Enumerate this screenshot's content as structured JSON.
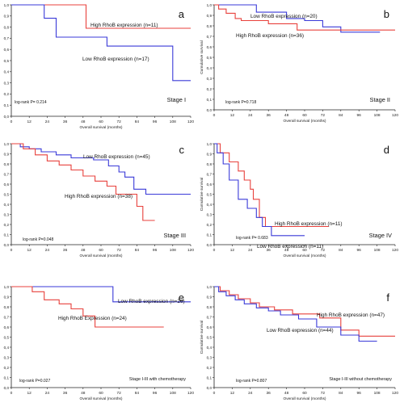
{
  "chart_data": [
    {
      "type": "line",
      "panel_letter": "a",
      "xlabel": "Overall survival (months)",
      "ylabel": "Cumulative survival",
      "xlim": [
        0,
        120
      ],
      "ylim": [
        0,
        1
      ],
      "x_ticks": [
        0,
        12,
        24,
        36,
        48,
        60,
        72,
        84,
        96,
        108,
        120
      ],
      "y_ticks": [
        "0,0",
        "0,1",
        "0,2",
        "0,3",
        "0,4",
        "0,5",
        "0,6",
        "0,7",
        "0,8",
        "0,9",
        "1,0"
      ],
      "annotation": "log-rank P= 0.214",
      "stage_label": "Stage I",
      "series": [
        {
          "name": "High RhoB expression (n=11)",
          "color": "#e8413c",
          "x": [
            0,
            50,
            50,
            120
          ],
          "y": [
            1.0,
            1.0,
            0.79,
            0.79
          ]
        },
        {
          "name": "Low RhoB expression (n=17)",
          "color": "#3a3ad8",
          "x": [
            0,
            22,
            22,
            30,
            30,
            36,
            36,
            64,
            64,
            108,
            108,
            120
          ],
          "y": [
            1.0,
            1.0,
            0.88,
            0.88,
            0.71,
            0.71,
            0.71,
            0.71,
            0.63,
            0.63,
            0.32,
            0.32
          ]
        }
      ]
    },
    {
      "type": "line",
      "panel_letter": "b",
      "xlabel": "Overall survival (months)",
      "ylabel": "Cumulative survival",
      "xlim": [
        0,
        120
      ],
      "ylim": [
        0,
        1
      ],
      "x_ticks": [
        0,
        12,
        24,
        36,
        48,
        60,
        72,
        84,
        96,
        108,
        120
      ],
      "y_ticks": [
        "0,0",
        "0,1",
        "0,2",
        "0,3",
        "0,4",
        "0,5",
        "0,6",
        "0,7",
        "0,8",
        "0,9",
        "1,0"
      ],
      "annotation": "log-rank P=0.718",
      "stage_label": "Stage II",
      "series": [
        {
          "name": "Low RhoB expression (n=20)",
          "color": "#3a3ad8",
          "x": [
            0,
            28,
            28,
            48,
            48,
            60,
            60,
            72,
            72,
            84,
            84,
            110
          ],
          "y": [
            1.0,
            1.0,
            0.93,
            0.93,
            0.87,
            0.87,
            0.85,
            0.85,
            0.79,
            0.79,
            0.74,
            0.74
          ]
        },
        {
          "name": "High RhoB expression (n=36)",
          "color": "#e8413c",
          "x": [
            0,
            3,
            3,
            8,
            8,
            14,
            14,
            18,
            18,
            36,
            36,
            55,
            55,
            120
          ],
          "y": [
            1.0,
            1.0,
            0.96,
            0.96,
            0.92,
            0.92,
            0.87,
            0.87,
            0.85,
            0.85,
            0.82,
            0.82,
            0.76,
            0.76
          ]
        }
      ]
    },
    {
      "type": "line",
      "panel_letter": "c",
      "xlabel": "Overall survival (months)",
      "ylabel": "Cumulative survival",
      "xlim": [
        0,
        120
      ],
      "ylim": [
        0,
        1
      ],
      "x_ticks": [
        0,
        12,
        24,
        36,
        48,
        60,
        72,
        84,
        96,
        108,
        120
      ],
      "y_ticks": [
        "0,0",
        "0,1",
        "0,2",
        "0,3",
        "0,4",
        "0,5",
        "0,6",
        "0,7",
        "0,8",
        "0,9",
        "1,0"
      ],
      "annotation": "log-rank P=0.048",
      "stage_label": "Stage III",
      "series": [
        {
          "name": "Low RhoB expression (n=45)",
          "color": "#3a3ad8",
          "x": [
            0,
            6,
            6,
            12,
            12,
            20,
            20,
            30,
            30,
            40,
            40,
            55,
            55,
            65,
            65,
            72,
            72,
            76,
            76,
            82,
            82,
            90,
            90,
            120
          ],
          "y": [
            1.0,
            1.0,
            0.97,
            0.97,
            0.95,
            0.95,
            0.92,
            0.92,
            0.89,
            0.89,
            0.86,
            0.86,
            0.84,
            0.84,
            0.78,
            0.78,
            0.72,
            0.72,
            0.67,
            0.67,
            0.55,
            0.55,
            0.5,
            0.5
          ]
        },
        {
          "name": "High RhoB expression (n=38)",
          "color": "#e8413c",
          "x": [
            0,
            8,
            8,
            16,
            16,
            24,
            24,
            32,
            32,
            40,
            40,
            48,
            48,
            56,
            56,
            64,
            64,
            70,
            70,
            84,
            84,
            88,
            88,
            96
          ],
          "y": [
            1.0,
            1.0,
            0.95,
            0.95,
            0.89,
            0.89,
            0.83,
            0.83,
            0.79,
            0.79,
            0.74,
            0.74,
            0.68,
            0.68,
            0.63,
            0.63,
            0.58,
            0.58,
            0.5,
            0.5,
            0.38,
            0.38,
            0.24,
            0.24
          ]
        }
      ]
    },
    {
      "type": "line",
      "panel_letter": "d",
      "xlabel": "Overall survival (months)",
      "ylabel": "Cumulative survival",
      "xlim": [
        0,
        120
      ],
      "ylim": [
        0,
        1
      ],
      "x_ticks": [
        0,
        12,
        24,
        36,
        48,
        60,
        72,
        84,
        96,
        108,
        120
      ],
      "y_ticks": [
        "0,0",
        "0,1",
        "0,2",
        "0,3",
        "0,4",
        "0,5",
        "0,6",
        "0,7",
        "0,8",
        "0,9",
        "1,0"
      ],
      "annotation": "log-rank P= 0.683",
      "stage_label": "Stage IV",
      "series": [
        {
          "name": "High RhoB expression (n=11)",
          "color": "#e8413c",
          "x": [
            0,
            4,
            4,
            10,
            10,
            16,
            16,
            20,
            20,
            24,
            24,
            26,
            26,
            30,
            30,
            34,
            34,
            40,
            40,
            76
          ],
          "y": [
            1.0,
            1.0,
            0.91,
            0.91,
            0.82,
            0.82,
            0.73,
            0.73,
            0.64,
            0.64,
            0.55,
            0.55,
            0.45,
            0.45,
            0.27,
            0.27,
            0.18,
            0.18,
            0.18,
            0.18
          ]
        },
        {
          "name": "Low RhoB expression (n=11)",
          "color": "#3a3ad8",
          "x": [
            0,
            2,
            2,
            6,
            6,
            10,
            10,
            16,
            16,
            22,
            22,
            28,
            28,
            32,
            32,
            38,
            38,
            54,
            54,
            60
          ],
          "y": [
            1.0,
            1.0,
            0.91,
            0.91,
            0.8,
            0.8,
            0.64,
            0.64,
            0.45,
            0.45,
            0.36,
            0.36,
            0.27,
            0.27,
            0.18,
            0.18,
            0.09,
            0.09,
            0.09,
            0.09
          ]
        }
      ]
    },
    {
      "type": "line",
      "panel_letter": "e",
      "xlabel": "Overall survival (months)",
      "ylabel": "Cumulative survival",
      "xlim": [
        0,
        120
      ],
      "ylim": [
        0,
        1
      ],
      "x_ticks": [
        0,
        12,
        24,
        36,
        48,
        60,
        72,
        84,
        96,
        108,
        120
      ],
      "y_ticks": [
        "0,0",
        "0,1",
        "0,2",
        "0,3",
        "0,4",
        "0,5",
        "0,6",
        "0,7",
        "0,8",
        "0,9",
        "1,0"
      ],
      "annotation": "log-rank P=0.027",
      "stage_label": "Stage I-III with chemotherapy",
      "series": [
        {
          "name": "Low RhoB expression (n=26)",
          "color": "#3a3ad8",
          "x": [
            0,
            68,
            68,
            120
          ],
          "y": [
            1.0,
            1.0,
            0.85,
            0.85
          ]
        },
        {
          "name": "High RhoB Expression (n=24)",
          "color": "#e8413c",
          "x": [
            0,
            14,
            14,
            22,
            22,
            32,
            32,
            40,
            40,
            48,
            48,
            56,
            56,
            102
          ],
          "y": [
            1.0,
            1.0,
            0.95,
            0.95,
            0.87,
            0.87,
            0.83,
            0.83,
            0.78,
            0.78,
            0.71,
            0.71,
            0.6,
            0.6
          ]
        }
      ]
    },
    {
      "type": "line",
      "panel_letter": "f",
      "xlabel": "Overall survival (months)",
      "ylabel": "Cumulative survival",
      "xlim": [
        0,
        120
      ],
      "ylim": [
        0,
        1
      ],
      "x_ticks": [
        0,
        12,
        24,
        36,
        48,
        60,
        72,
        84,
        96,
        108,
        120
      ],
      "y_ticks": [
        "0,0",
        "0,1",
        "0,2",
        "0,3",
        "0,4",
        "0,5",
        "0,6",
        "0,7",
        "0,8",
        "0,9",
        "1,0"
      ],
      "annotation": "log-rank P=0.807",
      "stage_label": "Stage I-III without chemotherapy",
      "series": [
        {
          "name": "High RhoB expression (n=47)",
          "color": "#e8413c",
          "x": [
            0,
            4,
            4,
            10,
            10,
            16,
            16,
            24,
            24,
            30,
            30,
            40,
            40,
            52,
            52,
            70,
            70,
            84,
            84,
            96,
            96,
            120
          ],
          "y": [
            1.0,
            1.0,
            0.96,
            0.96,
            0.92,
            0.92,
            0.88,
            0.88,
            0.84,
            0.84,
            0.8,
            0.8,
            0.77,
            0.77,
            0.73,
            0.73,
            0.69,
            0.69,
            0.57,
            0.57,
            0.51,
            0.51
          ]
        },
        {
          "name": "Low RhoB expression (n=44)",
          "color": "#3a3ad8",
          "x": [
            0,
            3,
            3,
            8,
            8,
            14,
            14,
            20,
            20,
            28,
            28,
            36,
            36,
            44,
            44,
            56,
            56,
            68,
            68,
            84,
            84,
            96,
            96,
            108
          ],
          "y": [
            1.0,
            1.0,
            0.95,
            0.95,
            0.91,
            0.91,
            0.87,
            0.87,
            0.83,
            0.83,
            0.79,
            0.79,
            0.76,
            0.76,
            0.72,
            0.72,
            0.68,
            0.68,
            0.6,
            0.6,
            0.52,
            0.52,
            0.46,
            0.46
          ]
        }
      ]
    }
  ]
}
